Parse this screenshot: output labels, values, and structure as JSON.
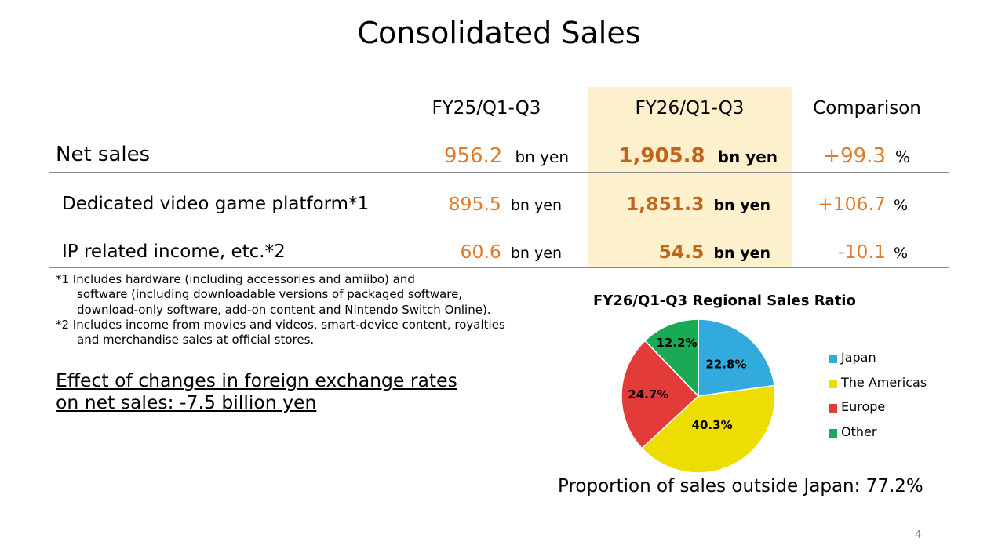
{
  "title": "Consolidated Sales",
  "table": {
    "headers": [
      "FY25/Q1-Q3",
      "FY26/Q1-Q3",
      "Comparison"
    ],
    "rows": [
      {
        "label": "Net sales",
        "fy25": "956.2",
        "fy25_unit": "bn yen",
        "fy26": "1,905.8",
        "fy26_unit": "bn yen",
        "comparison": "+99.3",
        "comparison_unit": "%"
      },
      {
        "label": "Dedicated video game platform*1",
        "fy25": "895.5",
        "fy25_unit": "bn yen",
        "fy26": "1,851.3",
        "fy26_unit": "bn yen",
        "comparison": "+106.7",
        "comparison_unit": "%"
      },
      {
        "label": "IP related income, etc.*2",
        "fy25": "60.6",
        "fy25_unit": "bn yen",
        "fy26": "54.5",
        "fy26_unit": "bn yen",
        "comparison": "-10.1",
        "comparison_unit": "%"
      }
    ]
  },
  "footnotes": {
    "note1_line1": "*1 Includes hardware (including accessories and amiibo) and",
    "note1_line2": "software (including downloadable versions of packaged software,",
    "note1_line3": "download-only software, add-on content and Nintendo Switch Online).",
    "note2_line1": "*2 Includes income from movies and videos, smart-device content, royalties",
    "note2_line2": "and merchandise sales at official stores."
  },
  "fx_effect": {
    "line1": "Effect of changes in foreign exchange rates",
    "line2": "on net sales: -7.5 billion yen"
  },
  "chart_data": {
    "type": "pie",
    "title": "FY26/Q1-Q3 Regional Sales Ratio",
    "categories": [
      "Japan",
      "The Americas",
      "Europe",
      "Other"
    ],
    "values": [
      22.8,
      40.3,
      24.7,
      12.2
    ],
    "labels": [
      "22.8%",
      "40.3%",
      "24.7%",
      "12.2%"
    ],
    "colors": [
      "#33aadd",
      "#eedd00",
      "#e33a3a",
      "#1aaa55"
    ],
    "legend_position": "right"
  },
  "outside_japan": "Proportion of sales outside Japan: 77.2%",
  "page_number": "4"
}
